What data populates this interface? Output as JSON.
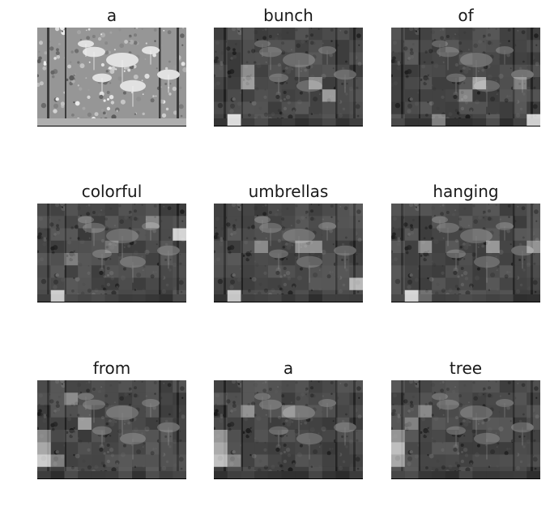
{
  "figure": {
    "panels": [
      {
        "word": "a",
        "kind": "original",
        "hot": []
      },
      {
        "word": "bunch",
        "kind": "attention",
        "hot": [
          [
            1,
            7,
            0.95
          ],
          [
            2,
            4,
            0.55
          ],
          [
            2,
            3,
            0.45
          ],
          [
            8,
            5,
            0.5
          ],
          [
            7,
            4,
            0.4
          ]
        ]
      },
      {
        "word": "of",
        "kind": "attention",
        "hot": [
          [
            10,
            7,
            0.9
          ],
          [
            6,
            4,
            0.65
          ],
          [
            5,
            5,
            0.45
          ],
          [
            9,
            4,
            0.4
          ],
          [
            3,
            7,
            0.35
          ]
        ]
      },
      {
        "word": "colorful",
        "kind": "attention",
        "hot": [
          [
            10,
            2,
            0.9
          ],
          [
            1,
            7,
            0.85
          ],
          [
            8,
            1,
            0.45
          ],
          [
            2,
            4,
            0.4
          ],
          [
            5,
            3,
            0.3
          ]
        ]
      },
      {
        "word": "umbrellas",
        "kind": "attention",
        "hot": [
          [
            1,
            7,
            0.85
          ],
          [
            10,
            6,
            0.7
          ],
          [
            6,
            3,
            0.45
          ],
          [
            7,
            3,
            0.4
          ],
          [
            3,
            3,
            0.35
          ]
        ]
      },
      {
        "word": "hanging",
        "kind": "attention",
        "hot": [
          [
            1,
            7,
            0.9
          ],
          [
            7,
            3,
            0.5
          ],
          [
            2,
            3,
            0.4
          ],
          [
            10,
            3,
            0.45
          ],
          [
            2,
            7,
            0.3
          ]
        ]
      },
      {
        "word": "from",
        "kind": "attention",
        "hot": [
          [
            0,
            6,
            0.85
          ],
          [
            0,
            5,
            0.65
          ],
          [
            3,
            3,
            0.55
          ],
          [
            2,
            1,
            0.5
          ],
          [
            0,
            4,
            0.45
          ],
          [
            1,
            6,
            0.4
          ]
        ]
      },
      {
        "word": "a",
        "kind": "attention",
        "hot": [
          [
            0,
            6,
            0.8
          ],
          [
            0,
            5,
            0.65
          ],
          [
            0,
            4,
            0.55
          ],
          [
            2,
            2,
            0.5
          ],
          [
            1,
            6,
            0.45
          ],
          [
            5,
            2,
            0.4
          ]
        ]
      },
      {
        "word": "tree",
        "kind": "attention",
        "hot": [
          [
            0,
            5,
            0.75
          ],
          [
            0,
            6,
            0.6
          ],
          [
            0,
            4,
            0.45
          ],
          [
            1,
            3,
            0.4
          ],
          [
            2,
            2,
            0.35
          ]
        ]
      }
    ]
  }
}
